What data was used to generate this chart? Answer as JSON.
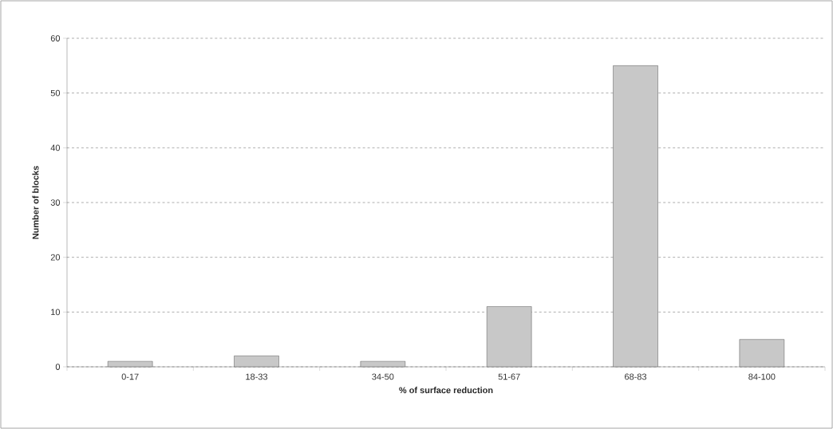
{
  "chart_data": {
    "type": "bar",
    "xlabel": "% of surface reduction",
    "ylabel": "Number of blocks",
    "categories": [
      "0-17",
      "18-33",
      "34-50",
      "51-67",
      "68-83",
      "84-100"
    ],
    "values": [
      1,
      2,
      1,
      11,
      55,
      5
    ],
    "color": "#c8c8c8",
    "ylim": [
      0,
      60
    ],
    "yticks": [
      0,
      10,
      20,
      30,
      40,
      50,
      60
    ],
    "grid": "y"
  }
}
